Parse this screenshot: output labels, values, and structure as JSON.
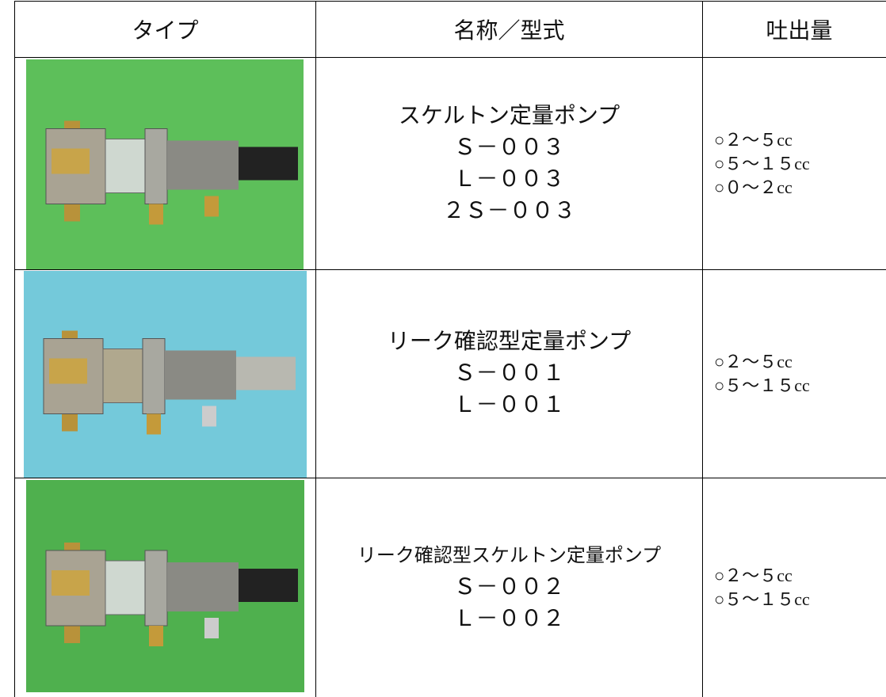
{
  "table": {
    "header": [
      "タイプ",
      "名称／型式",
      "吐出量"
    ],
    "rows": [
      {
        "name": [
          "スケルトン定量ポンプ",
          "Ｓ－００３",
          "Ｌ－００３",
          "２Ｓ－００３"
        ],
        "flow": [
          "○２～５cc",
          "○５～１５cc",
          "○０～２cc"
        ]
      },
      {
        "name": [
          "リーク確認型定量ポンプ",
          "Ｓ－００１",
          "Ｌ－００１"
        ],
        "flow": [
          "○２～５cc",
          "○５～１５cc"
        ]
      },
      {
        "name": [
          "リーク確認型スケルトン定量ポンプ",
          "Ｓ－００２",
          "Ｌ－００２"
        ],
        "flow": [
          "○２～５cc",
          "○５～１５cc"
        ]
      }
    ]
  }
}
